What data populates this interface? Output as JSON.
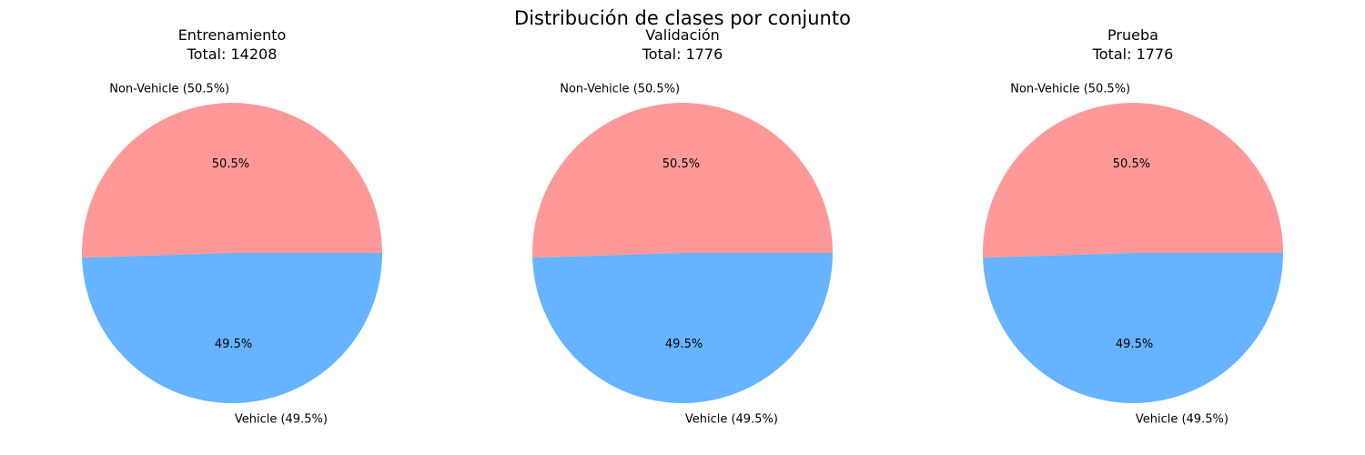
{
  "figure": {
    "suptitle": "Distribución de clases por conjunto"
  },
  "colors": {
    "non_vehicle": "#ff9999",
    "vehicle": "#66b3ff"
  },
  "chart_data": [
    {
      "type": "pie",
      "title": "Entrenamiento",
      "subtitle": "Total: 14208",
      "slices": [
        {
          "label": "Non-Vehicle (50.5%)",
          "pct_label": "50.5%",
          "value": 50.5,
          "color": "#ff9999"
        },
        {
          "label": "Vehicle (49.5%)",
          "pct_label": "49.5%",
          "value": 49.5,
          "color": "#66b3ff"
        }
      ]
    },
    {
      "type": "pie",
      "title": "Validación",
      "subtitle": "Total: 1776",
      "slices": [
        {
          "label": "Non-Vehicle (50.5%)",
          "pct_label": "50.5%",
          "value": 50.5,
          "color": "#ff9999"
        },
        {
          "label": "Vehicle (49.5%)",
          "pct_label": "49.5%",
          "value": 49.5,
          "color": "#66b3ff"
        }
      ]
    },
    {
      "type": "pie",
      "title": "Prueba",
      "subtitle": "Total: 1776",
      "slices": [
        {
          "label": "Non-Vehicle (50.5%)",
          "pct_label": "50.5%",
          "value": 50.5,
          "color": "#ff9999"
        },
        {
          "label": "Vehicle (49.5%)",
          "pct_label": "49.5%",
          "value": 49.5,
          "color": "#66b3ff"
        }
      ]
    }
  ]
}
